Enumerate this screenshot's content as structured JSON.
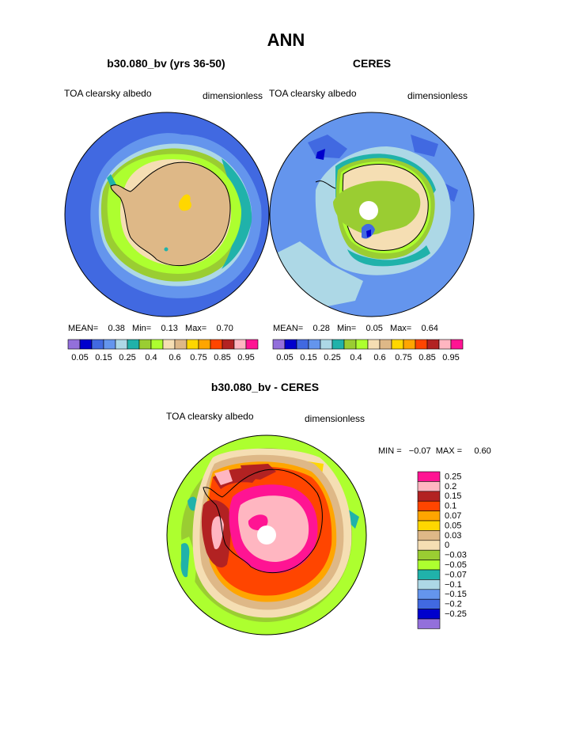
{
  "page": {
    "main_title": "ANN",
    "bottom_title": "b30.080_bv - CERES"
  },
  "panels": [
    {
      "title": "b30.080_bv (yrs 36-50)",
      "left_label": "TOA clearsky albedo",
      "right_label": "dimensionless",
      "stats": {
        "mean_label": "MEAN=",
        "mean": "0.38",
        "min_label": "Min=",
        "min": "0.13",
        "max_label": "Max=",
        "max": "0.70"
      }
    },
    {
      "title": "CERES",
      "left_label": "TOA clearsky albedo",
      "right_label": "dimensionless",
      "stats": {
        "mean_label": "MEAN=",
        "mean": "0.28",
        "min_label": "Min=",
        "min": "0.05",
        "max_label": "Max=",
        "max": "0.64"
      }
    },
    {
      "title": "b30.080_bv - CERES",
      "left_label": "TOA clearsky albedo",
      "right_label": "dimensionless",
      "stats_text": "MIN =   −0.07  MAX =     0.60"
    }
  ],
  "chart_data": [
    {
      "type": "heatmap",
      "title": "b30.080_bv (yrs 36-50)",
      "projection": "south polar stereographic",
      "variable": "TOA clearsky albedo",
      "units": "dimensionless",
      "mean": 0.38,
      "min": 0.13,
      "max": 0.7,
      "levels": [
        0.05,
        0.1,
        0.15,
        0.2,
        0.25,
        0.3,
        0.4,
        0.5,
        0.6,
        0.7,
        0.75,
        0.8,
        0.85,
        0.9,
        0.95
      ],
      "level_labels": [
        "0.05",
        "0.15",
        "0.25",
        "0.4",
        "0.6",
        "0.75",
        "0.85",
        "0.95"
      ],
      "colors": [
        "#9370db",
        "#0000cd",
        "#4169e1",
        "#6495ed",
        "#add8e6",
        "#20b2aa",
        "#9acd32",
        "#adff2f",
        "#f5deb3",
        "#deb887",
        "#ffd700",
        "#ffa500",
        "#ff4500",
        "#b22222",
        "#ffb6c1",
        "#ff1493"
      ]
    },
    {
      "type": "heatmap",
      "title": "CERES",
      "projection": "south polar stereographic",
      "variable": "TOA clearsky albedo",
      "units": "dimensionless",
      "mean": 0.28,
      "min": 0.05,
      "max": 0.64,
      "levels": [
        0.05,
        0.1,
        0.15,
        0.2,
        0.25,
        0.3,
        0.4,
        0.5,
        0.6,
        0.7,
        0.75,
        0.8,
        0.85,
        0.9,
        0.95
      ],
      "level_labels": [
        "0.05",
        "0.15",
        "0.25",
        "0.4",
        "0.6",
        "0.75",
        "0.85",
        "0.95"
      ],
      "colors": [
        "#9370db",
        "#0000cd",
        "#4169e1",
        "#6495ed",
        "#add8e6",
        "#20b2aa",
        "#9acd32",
        "#adff2f",
        "#f5deb3",
        "#deb887",
        "#ffd700",
        "#ffa500",
        "#ff4500",
        "#b22222",
        "#ffb6c1",
        "#ff1493"
      ]
    },
    {
      "type": "heatmap",
      "title": "b30.080_bv - CERES",
      "projection": "south polar stereographic",
      "variable": "TOA clearsky albedo",
      "units": "dimensionless",
      "min": -0.07,
      "max": 0.6,
      "levels": [
        0.25,
        0.2,
        0.15,
        0.1,
        0.07,
        0.05,
        0.03,
        0,
        -0.03,
        -0.05,
        -0.07,
        -0.1,
        -0.15,
        -0.2,
        -0.25
      ],
      "level_labels": [
        "0.25",
        "0.2",
        "0.15",
        "0.1",
        "0.07",
        "0.05",
        "0.03",
        "0",
        "−0.03",
        "−0.05",
        "−0.07",
        "−0.1",
        "−0.15",
        "−0.2",
        "−0.25"
      ],
      "colors": [
        "#ff1493",
        "#ffb6c1",
        "#b22222",
        "#ff4500",
        "#ffa500",
        "#ffd700",
        "#deb887",
        "#f5deb3",
        "#9acd32",
        "#adff2f",
        "#20b2aa",
        "#add8e6",
        "#6495ed",
        "#4169e1",
        "#0000cd",
        "#9370db"
      ]
    }
  ]
}
